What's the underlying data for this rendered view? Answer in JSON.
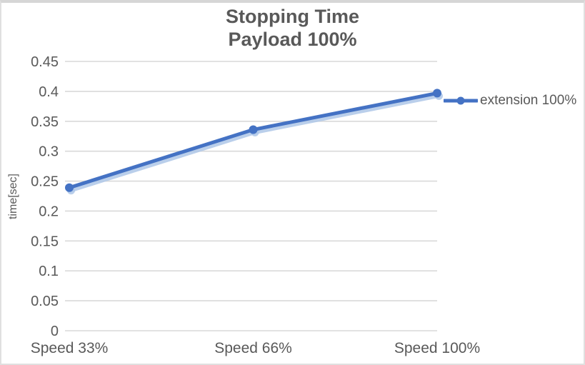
{
  "chart_data": {
    "type": "line",
    "title": "Stopping Time",
    "subtitle": "Payload 100%",
    "ylabel": "time[sec]",
    "xlabel": "",
    "categories": [
      "Speed 33%",
      "Speed 66%",
      "Speed 100%"
    ],
    "series": [
      {
        "name": "extension 100%",
        "values": [
          0.239,
          0.336,
          0.397
        ]
      }
    ],
    "ylim": [
      0,
      0.45
    ],
    "ytick_step": 0.05,
    "ytick_labels": [
      "0",
      "0.05",
      "0.1",
      "0.15",
      "0.2",
      "0.25",
      "0.3",
      "0.35",
      "0.4",
      "0.45"
    ],
    "grid": true,
    "legend_position": "right"
  },
  "colors": {
    "series_line": "#4472C4",
    "series_shadow": "#AEC7E8",
    "gridline": "#D9D9D9",
    "text": "#595959",
    "border": "#D6D6D6",
    "background": "#FFFFFF"
  }
}
